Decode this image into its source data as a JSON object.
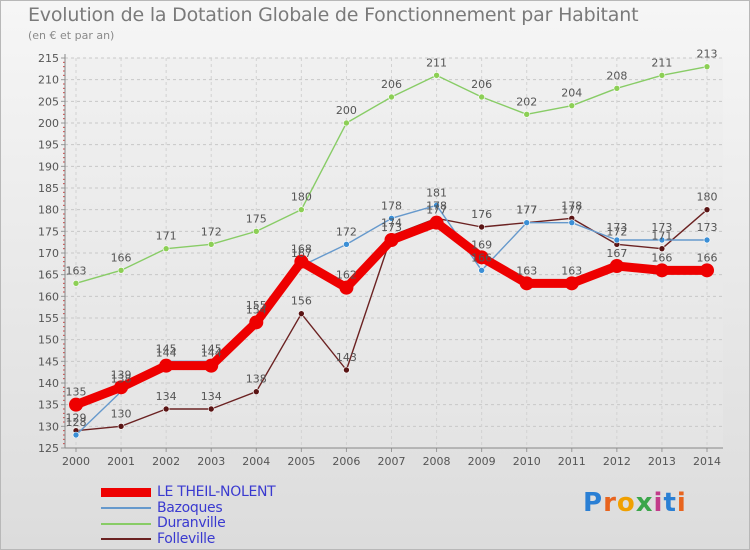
{
  "title": "Evolution de la Dotation Globale de Fonctionnement par Habitant",
  "subtitle": "(en € et par an)",
  "logo": {
    "text": "Proxiti",
    "letters": [
      "P",
      "r",
      "o",
      "x",
      "i",
      "t",
      "i"
    ],
    "colors": [
      "#2a7fd4",
      "#e8641e",
      "#f0a000",
      "#3aa64a",
      "#c23b8a",
      "#2a7fd4",
      "#e8641e"
    ]
  },
  "chart_data": {
    "type": "line",
    "title": "Evolution de la Dotation Globale de Fonctionnement par Habitant",
    "subtitle": "(en € et par an)",
    "xlabel": "",
    "ylabel": "",
    "ylim": [
      125,
      215
    ],
    "y_ticks": [
      125,
      130,
      135,
      140,
      145,
      150,
      155,
      160,
      165,
      170,
      175,
      180,
      185,
      190,
      195,
      200,
      205,
      210,
      215
    ],
    "x": [
      "2000",
      "2001",
      "2002",
      "2003",
      "2004",
      "2005",
      "2006",
      "2007",
      "2008",
      "2009",
      "2010",
      "2011",
      "2012",
      "2013",
      "2014"
    ],
    "grid": true,
    "legend_position": "bottom-left",
    "series": [
      {
        "name": "LE THEIL-NOLENT",
        "color": "#ee0000",
        "values": [
          135,
          139,
          144,
          144,
          154,
          168,
          162,
          173,
          177,
          169,
          163,
          163,
          167,
          166,
          166
        ]
      },
      {
        "name": "Bazoques",
        "color": "#6699cc",
        "values": [
          128,
          138,
          145,
          145,
          155,
          167,
          172,
          178,
          181,
          166,
          177,
          177,
          173,
          173,
          173
        ]
      },
      {
        "name": "Duranville",
        "color": "#88cc66",
        "values": [
          163,
          166,
          171,
          172,
          175,
          180,
          200,
          206,
          211,
          206,
          202,
          204,
          208,
          211,
          213
        ]
      },
      {
        "name": "Folleville",
        "color": "#6b2222",
        "values": [
          129,
          130,
          134,
          134,
          138,
          156,
          143,
          174,
          178,
          176,
          177,
          178,
          172,
          171,
          180
        ]
      }
    ]
  }
}
